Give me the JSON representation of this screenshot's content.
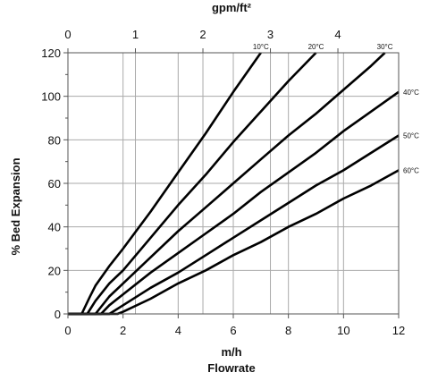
{
  "chart_data": {
    "type": "line",
    "title": "",
    "xlabel": "m/h",
    "xlabel2": "Flowrate",
    "ylabel": "% Bed Expansion",
    "x2label": "gpm/ft²",
    "xlim": [
      0,
      12
    ],
    "ylim": [
      0,
      120
    ],
    "x2lim": [
      0,
      4.9
    ],
    "x_ticks": [
      0,
      2,
      4,
      6,
      8,
      10,
      12
    ],
    "y_ticks": [
      0,
      20,
      40,
      60,
      80,
      100,
      120
    ],
    "x2_ticks": [
      0,
      1,
      2,
      3,
      4
    ],
    "grid": true,
    "series": [
      {
        "name": "10°C",
        "points": [
          [
            0,
            0
          ],
          [
            0.5,
            0
          ],
          [
            0.8,
            8
          ],
          [
            1.0,
            13
          ],
          [
            1.5,
            22
          ],
          [
            2,
            30
          ],
          [
            3,
            47
          ],
          [
            4,
            65
          ],
          [
            5,
            83
          ],
          [
            6,
            102
          ],
          [
            7,
            120
          ]
        ]
      },
      {
        "name": "20°C",
        "points": [
          [
            0,
            0
          ],
          [
            0.7,
            0
          ],
          [
            1.0,
            6
          ],
          [
            1.5,
            14
          ],
          [
            2,
            20
          ],
          [
            3,
            35
          ],
          [
            4,
            50
          ],
          [
            5,
            64
          ],
          [
            6,
            79
          ],
          [
            7,
            93
          ],
          [
            8,
            107
          ],
          [
            9,
            120
          ]
        ]
      },
      {
        "name": "30°C",
        "points": [
          [
            0,
            0
          ],
          [
            1.0,
            0
          ],
          [
            1.5,
            8
          ],
          [
            2,
            14
          ],
          [
            3,
            26
          ],
          [
            4,
            38
          ],
          [
            5,
            49
          ],
          [
            6,
            60
          ],
          [
            7,
            71
          ],
          [
            8,
            82
          ],
          [
            9,
            92
          ],
          [
            10,
            103
          ],
          [
            11,
            114
          ],
          [
            11.5,
            120
          ]
        ]
      },
      {
        "name": "40°C",
        "points": [
          [
            0,
            0
          ],
          [
            1.2,
            0
          ],
          [
            1.5,
            4
          ],
          [
            2,
            9
          ],
          [
            3,
            19
          ],
          [
            4,
            28
          ],
          [
            5,
            37
          ],
          [
            6,
            46
          ],
          [
            7,
            56
          ],
          [
            8,
            65
          ],
          [
            9,
            74
          ],
          [
            10,
            84
          ],
          [
            11,
            93
          ],
          [
            12,
            102
          ]
        ]
      },
      {
        "name": "50°C",
        "points": [
          [
            0,
            0
          ],
          [
            1.5,
            0
          ],
          [
            2,
            4
          ],
          [
            3,
            12
          ],
          [
            4,
            19
          ],
          [
            5,
            27
          ],
          [
            6,
            35
          ],
          [
            7,
            43
          ],
          [
            8,
            51
          ],
          [
            9,
            59
          ],
          [
            10,
            66
          ],
          [
            11,
            74
          ],
          [
            12,
            82
          ]
        ]
      },
      {
        "name": "60°C",
        "points": [
          [
            0,
            0
          ],
          [
            1.8,
            0
          ],
          [
            2,
            1
          ],
          [
            3,
            7
          ],
          [
            4,
            14
          ],
          [
            5,
            20
          ],
          [
            6,
            27
          ],
          [
            7,
            33
          ],
          [
            8,
            40
          ],
          [
            9,
            46
          ],
          [
            10,
            53
          ],
          [
            11,
            59
          ],
          [
            12,
            66
          ]
        ]
      }
    ]
  }
}
